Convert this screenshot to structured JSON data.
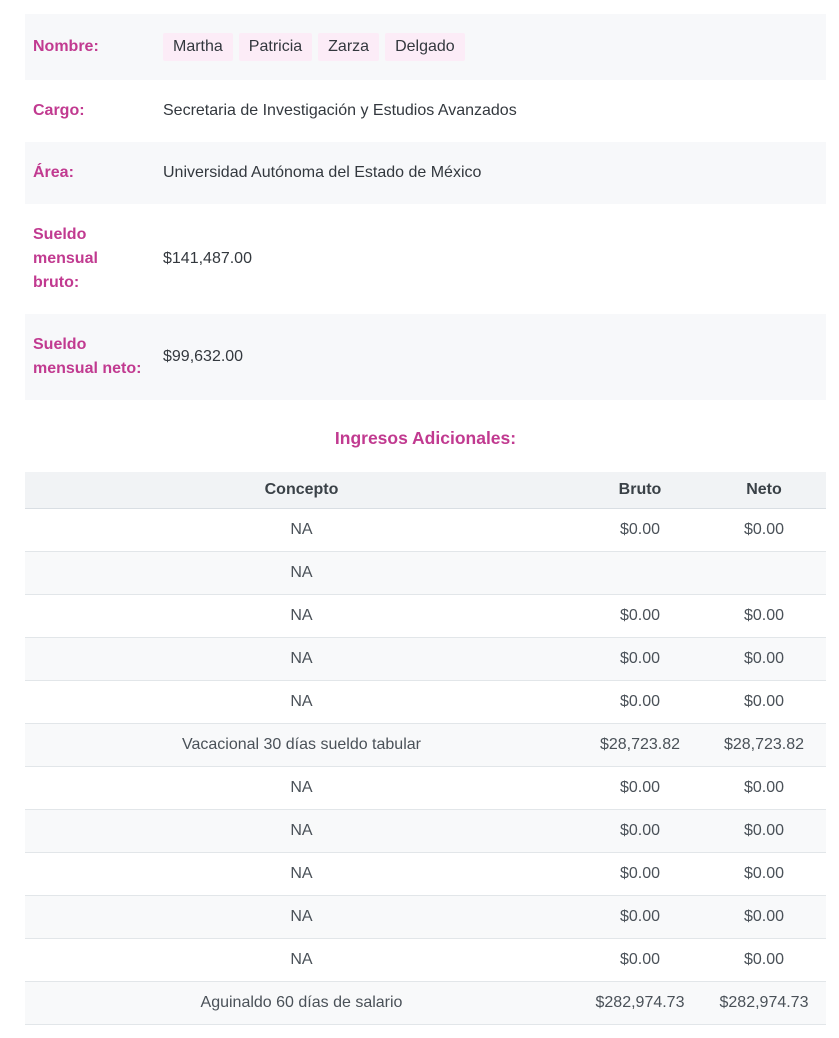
{
  "theme": {
    "accent_pink": "#c13a90",
    "name_highlight_bg": "#fcecf7",
    "stripe_bg": "#f7f8fa",
    "table_header_bg": "#f1f3f5"
  },
  "profile": {
    "rows": [
      {
        "label": "Nombre:",
        "chips": [
          "Martha",
          "Patricia",
          "Zarza",
          "Delgado"
        ]
      },
      {
        "label": "Cargo:",
        "value": "Secretaria de Investigación y Estudios Avanzados"
      },
      {
        "label": "Área:",
        "value": "Universidad Autónoma del Estado de México"
      },
      {
        "label": "Sueldo\nmensual\nbruto:",
        "value": "$141,487.00"
      },
      {
        "label": "Sueldo\nmensual neto:",
        "value": "$99,632.00"
      }
    ]
  },
  "additional_income": {
    "title": "Ingresos Adicionales:",
    "columns": [
      "Concepto",
      "Bruto",
      "Neto"
    ],
    "rows": [
      {
        "concepto": "NA",
        "bruto": "$0.00",
        "neto": "$0.00"
      },
      {
        "concepto": "NA",
        "bruto": "",
        "neto": ""
      },
      {
        "concepto": "NA",
        "bruto": "$0.00",
        "neto": "$0.00"
      },
      {
        "concepto": "NA",
        "bruto": "$0.00",
        "neto": "$0.00"
      },
      {
        "concepto": "NA",
        "bruto": "$0.00",
        "neto": "$0.00"
      },
      {
        "concepto": "Vacacional 30 días sueldo tabular",
        "bruto": "$28,723.82",
        "neto": "$28,723.82"
      },
      {
        "concepto": "NA",
        "bruto": "$0.00",
        "neto": "$0.00"
      },
      {
        "concepto": "NA",
        "bruto": "$0.00",
        "neto": "$0.00"
      },
      {
        "concepto": "NA",
        "bruto": "$0.00",
        "neto": "$0.00"
      },
      {
        "concepto": "NA",
        "bruto": "$0.00",
        "neto": "$0.00"
      },
      {
        "concepto": "NA",
        "bruto": "$0.00",
        "neto": "$0.00"
      },
      {
        "concepto": "Aguinaldo 60 días de salario",
        "bruto": "$282,974.73",
        "neto": "$282,974.73"
      }
    ]
  }
}
